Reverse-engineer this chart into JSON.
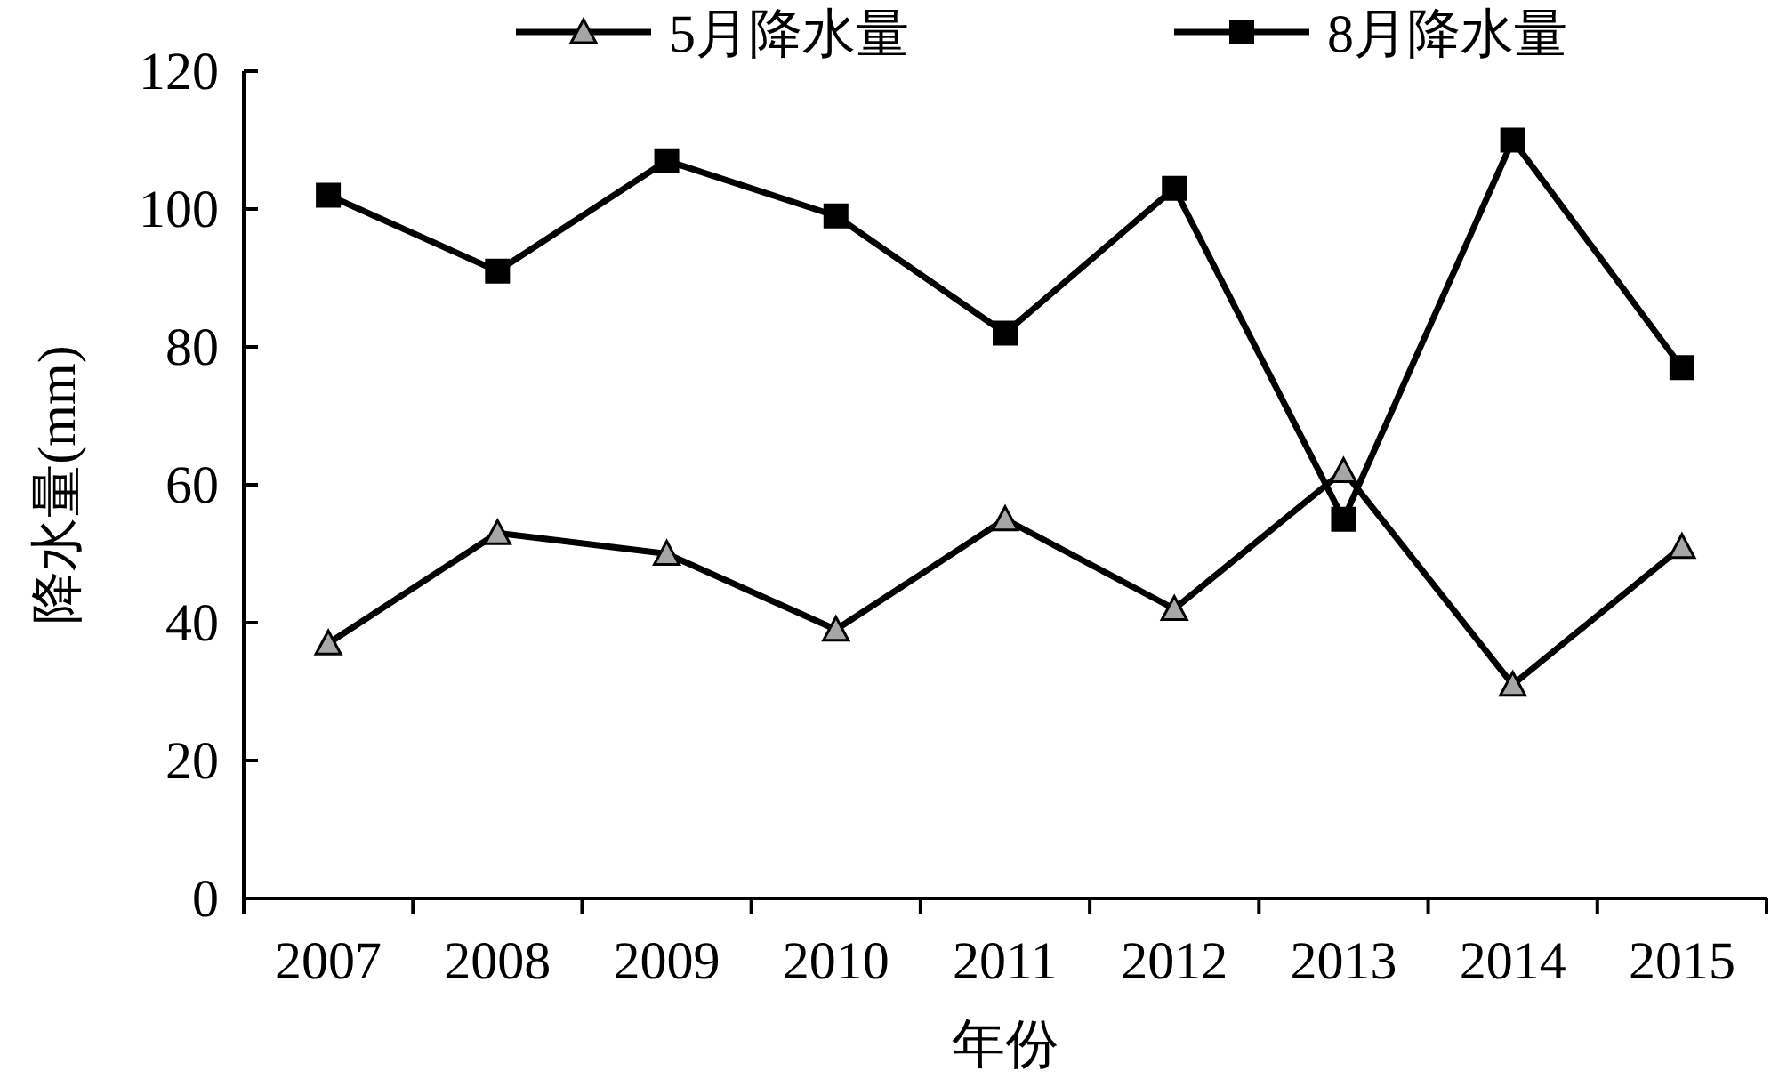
{
  "chart_data": {
    "type": "line",
    "xlabel": "年份",
    "ylabel": "降水量(mm)",
    "categories": [
      "2007",
      "2008",
      "2009",
      "2010",
      "2011",
      "2012",
      "2013",
      "2014",
      "2015"
    ],
    "series": [
      {
        "name": "5月降水量",
        "color": "#000000",
        "marker": "triangle",
        "values": [
          37,
          53,
          50,
          39,
          55,
          42,
          62,
          31,
          51
        ]
      },
      {
        "name": "8月降水量",
        "color": "#000000",
        "marker": "square",
        "values": [
          102,
          91,
          107,
          99,
          82,
          103,
          55,
          110,
          77
        ]
      }
    ],
    "ylim": [
      0,
      120
    ],
    "yticks": [
      0,
      20,
      40,
      60,
      80,
      100,
      120
    ],
    "legend": "top",
    "grid": false,
    "line_style": "solid"
  }
}
